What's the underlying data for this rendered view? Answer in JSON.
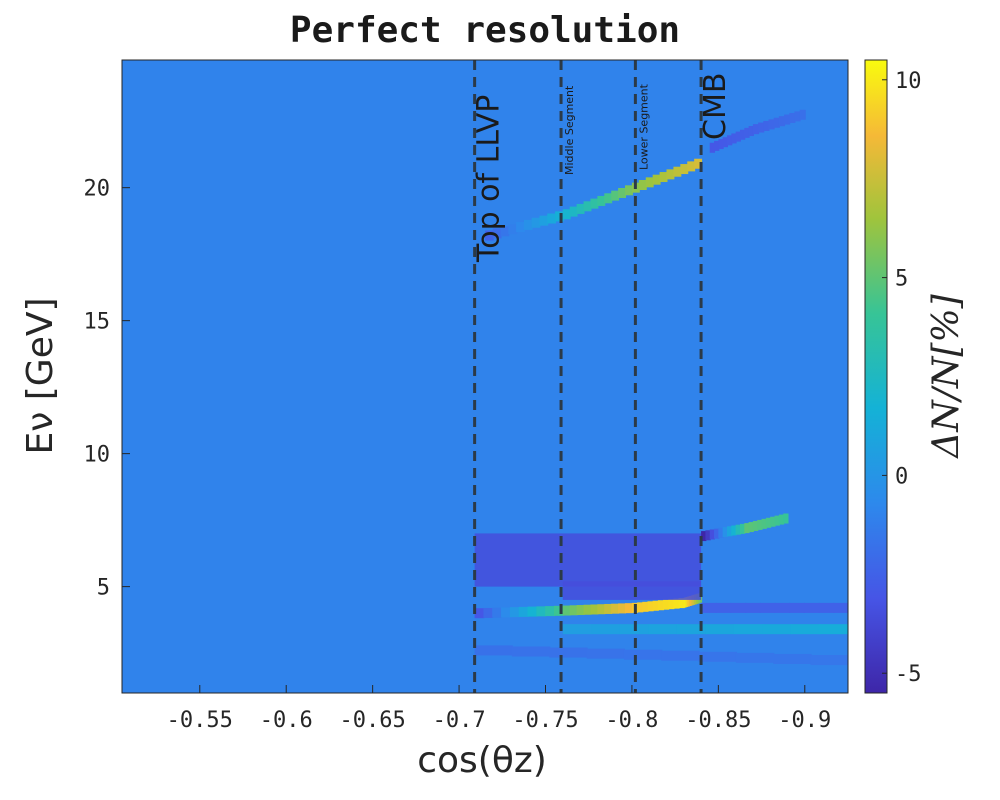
{
  "chart_data": {
    "type": "heatmap",
    "title": "Perfect resolution",
    "xlabel": "cos(θz)",
    "ylabel": "Eν [GeV]",
    "colorbar_label": "ΔN/N[%]",
    "x_reversed": true,
    "xlim": [
      -0.505,
      -0.925
    ],
    "ylim": [
      1,
      24.8
    ],
    "clim": [
      -5.5,
      10.5
    ],
    "colormap": "parula",
    "x_ticks": [
      -0.55,
      -0.6,
      -0.65,
      -0.7,
      -0.75,
      -0.8,
      -0.85,
      -0.9
    ],
    "x_tick_labels": [
      "-0.55",
      "-0.6",
      "-0.65",
      "-0.7",
      "-0.75",
      "-0.8",
      "-0.85",
      "-0.9"
    ],
    "y_ticks": [
      5,
      10,
      15,
      20
    ],
    "y_tick_labels": [
      "5",
      "10",
      "15",
      "20"
    ],
    "colorbar_ticks": [
      -5,
      0,
      5,
      10
    ],
    "colorbar_tick_labels": [
      "-5",
      "0",
      "5",
      "10"
    ],
    "boundaries": [
      {
        "x": -0.709,
        "label": "Top of LLVP"
      },
      {
        "x": -0.759,
        "label": "Middle Segment"
      },
      {
        "x": -0.802,
        "label": "Lower Segment"
      },
      {
        "x": -0.84,
        "label": "CMB"
      }
    ],
    "background_value": -1.0,
    "features": [
      {
        "kind": "ridge",
        "x": [
          -0.715,
          -0.76,
          -0.8,
          -0.84
        ],
        "y": [
          18.2,
          19.0,
          20.0,
          21.0
        ],
        "value": [
          -2.5,
          2.0,
          6.0,
          8.0
        ]
      },
      {
        "kind": "ridge",
        "x": [
          -0.845,
          -0.87,
          -0.9
        ],
        "y": [
          21.5,
          22.2,
          22.8
        ],
        "value": [
          -3.0,
          -2.5,
          -1.8
        ]
      },
      {
        "kind": "blob",
        "x": [
          -0.709,
          -0.84
        ],
        "y": [
          5.0,
          7.0
        ],
        "value": -3.5
      },
      {
        "kind": "ridge",
        "x": [
          -0.84,
          -0.865,
          -0.89
        ],
        "y": [
          6.9,
          7.2,
          7.6
        ],
        "value": [
          -5.5,
          5.0,
          4.0
        ]
      },
      {
        "kind": "ridge",
        "x": [
          -0.709,
          -0.76,
          -0.8,
          -0.83,
          -0.84
        ],
        "y": [
          4.0,
          4.1,
          4.2,
          4.4,
          4.6
        ],
        "value": [
          -3.0,
          5.0,
          9.0,
          10.0,
          5.0
        ]
      },
      {
        "kind": "blob",
        "x": [
          -0.76,
          -0.84
        ],
        "y": [
          4.5,
          5.2
        ],
        "value": -3.5
      },
      {
        "kind": "ridge",
        "x": [
          -0.84,
          -0.925
        ],
        "y": [
          4.2,
          4.2
        ],
        "value": [
          -2.5,
          -2.5
        ]
      },
      {
        "kind": "ridge",
        "x": [
          -0.76,
          -0.925
        ],
        "y": [
          3.4,
          3.4
        ],
        "value": [
          0.5,
          1.5
        ]
      },
      {
        "kind": "ridge",
        "x": [
          -0.709,
          -0.925
        ],
        "y": [
          2.6,
          2.2
        ],
        "value": [
          -1.8,
          -1.5
        ]
      }
    ]
  }
}
